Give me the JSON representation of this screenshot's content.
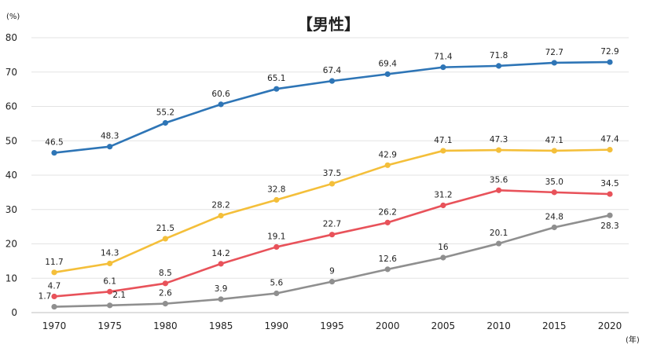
{
  "chart_data": {
    "type": "line",
    "title": "【男性】",
    "y_unit": "(%)",
    "x_unit": "(年)",
    "ylim": [
      0,
      80
    ],
    "y_ticks": [
      0,
      10,
      20,
      30,
      40,
      50,
      60,
      70,
      80
    ],
    "grid": true,
    "categories": [
      "1970",
      "1975",
      "1980",
      "1985",
      "1990",
      "1995",
      "2000",
      "2005",
      "2010",
      "2015",
      "2020"
    ],
    "series": [
      {
        "color": "#2e75b6",
        "values": [
          46.5,
          48.3,
          55.2,
          60.6,
          65.1,
          67.4,
          69.4,
          71.4,
          71.8,
          72.7,
          72.9
        ],
        "labels": [
          "46.5",
          "48.3",
          "55.2",
          "60.6",
          "65.1",
          "67.4",
          "69.4",
          "71.4",
          "71.8",
          "72.7",
          "72.9"
        ]
      },
      {
        "color": "#f4bf3a",
        "values": [
          11.7,
          14.3,
          21.5,
          28.2,
          32.8,
          37.5,
          42.9,
          47.1,
          47.3,
          47.1,
          47.4
        ],
        "labels": [
          "11.7",
          "14.3",
          "21.5",
          "28.2",
          "32.8",
          "37.5",
          "42.9",
          "47.1",
          "47.3",
          "47.1",
          "47.4"
        ]
      },
      {
        "color": "#e8525a",
        "values": [
          4.7,
          6.1,
          8.5,
          14.2,
          19.1,
          22.7,
          26.2,
          31.2,
          35.6,
          35.0,
          34.5
        ],
        "labels": [
          "4.7",
          "6.1",
          "8.5",
          "14.2",
          "19.1",
          "22.7",
          "26.2",
          "31.2",
          "35.6",
          "35.0",
          "34.5"
        ]
      },
      {
        "color": "#8f8f8f",
        "values": [
          1.7,
          2.1,
          2.6,
          3.9,
          5.6,
          9,
          12.6,
          16,
          20.1,
          24.8,
          28.3
        ],
        "labels": [
          "1.7",
          "2.1",
          "2.6",
          "3.9",
          "5.6",
          "9",
          "12.6",
          "16",
          "20.1",
          "24.8",
          "28.3"
        ]
      }
    ]
  }
}
